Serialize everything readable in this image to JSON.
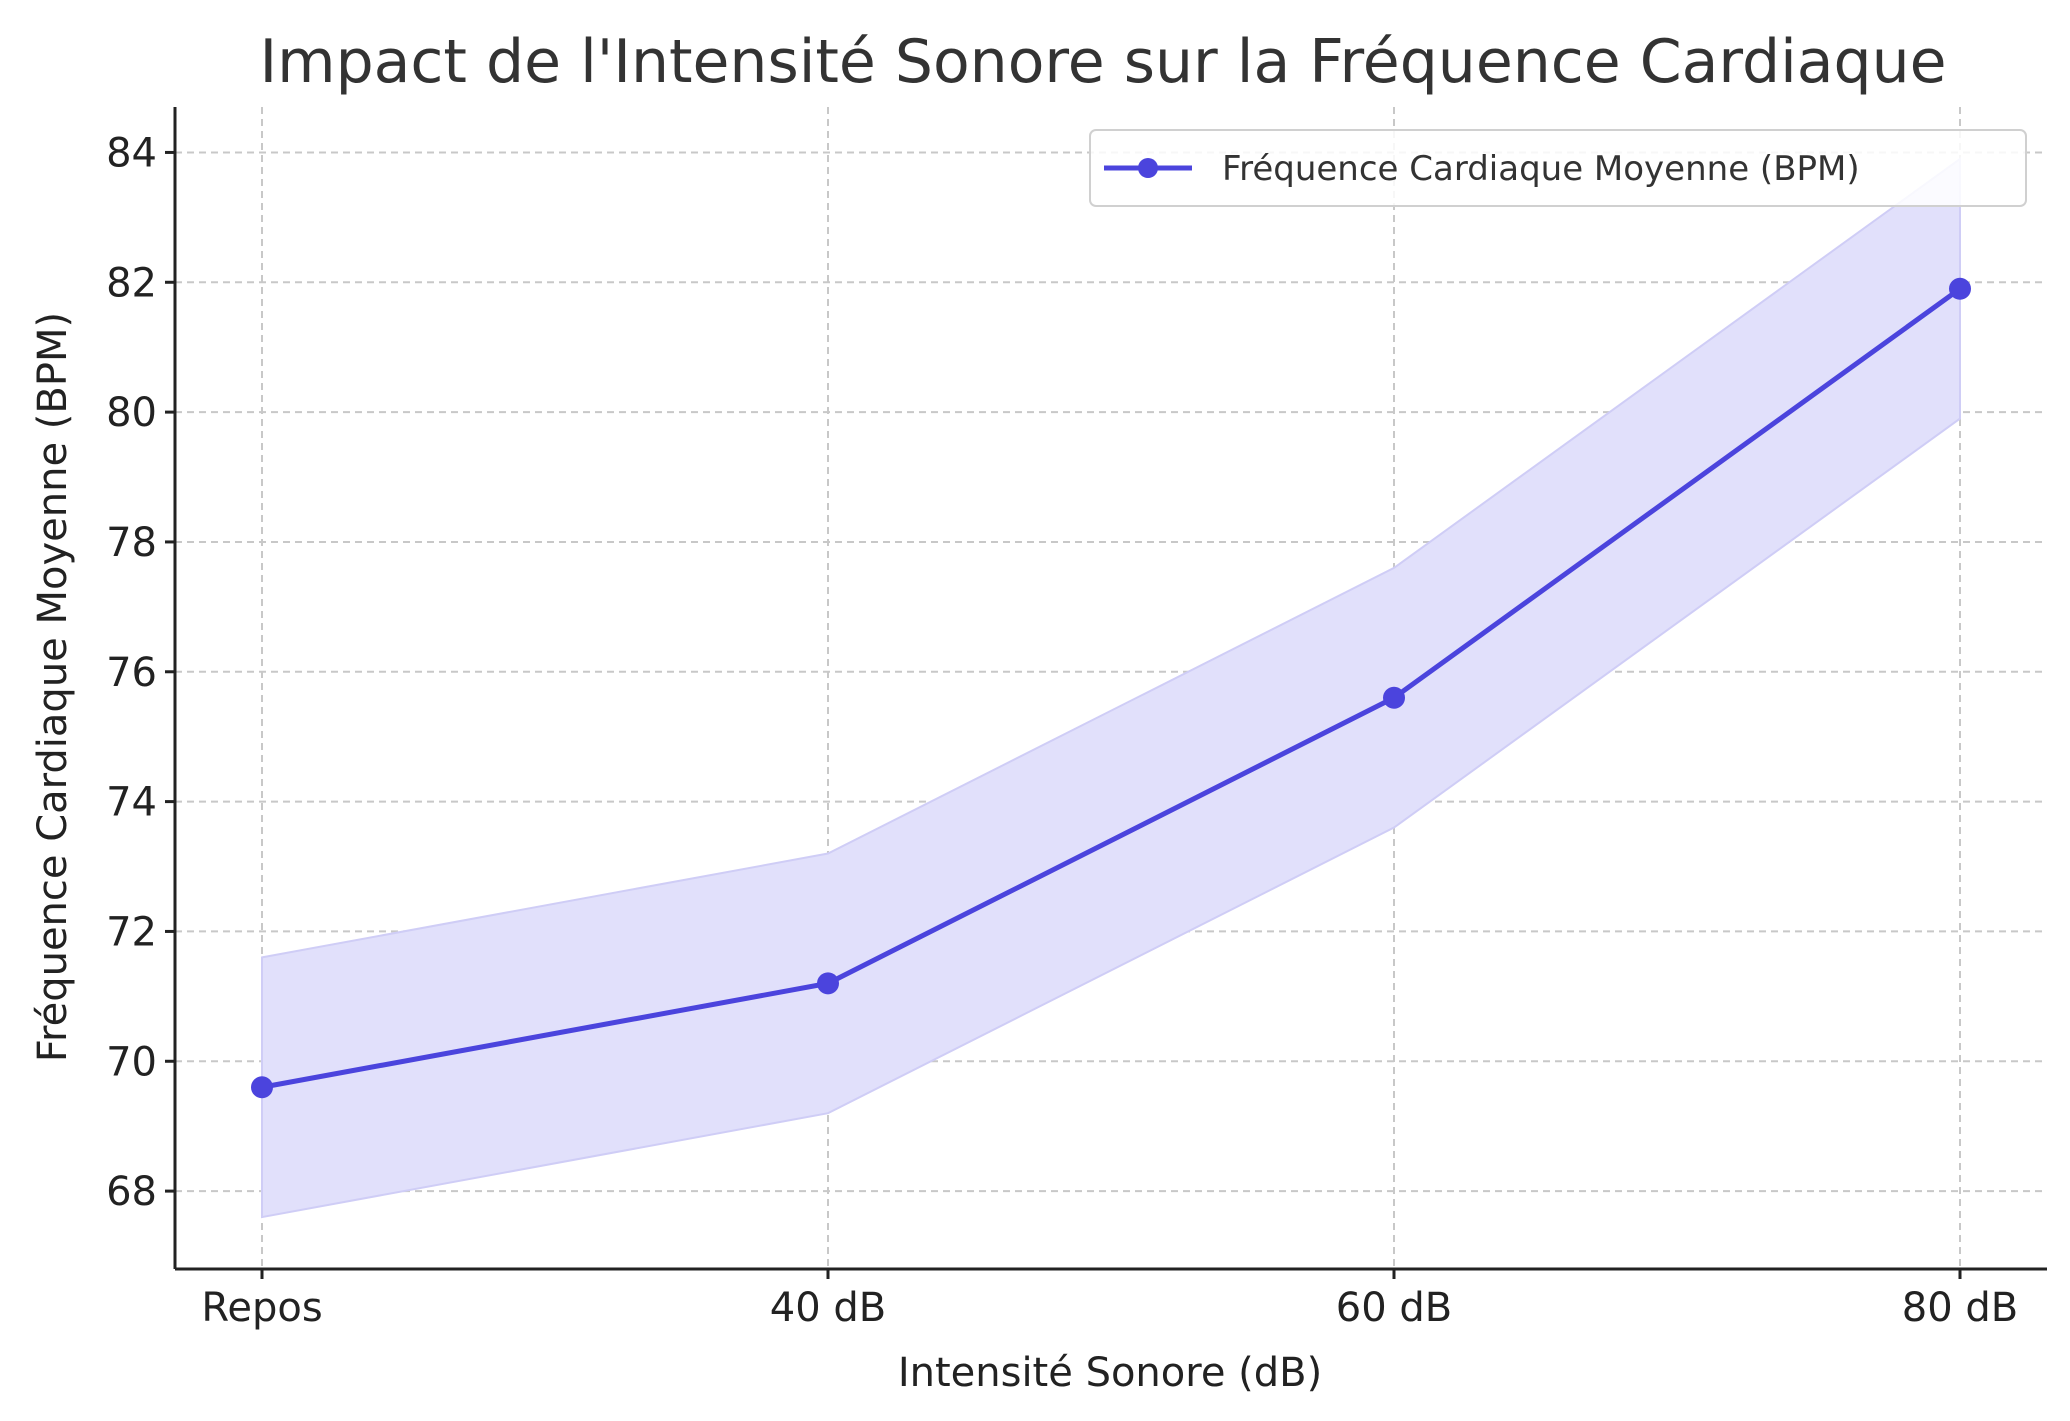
{
  "chart_data": {
    "type": "line",
    "title": "Impact de l'Intensité Sonore sur la Fréquence Cardiaque",
    "xlabel": "Intensité Sonore (dB)",
    "ylabel": "Fréquence Cardiaque Moyenne (BPM)",
    "categories": [
      "Repos",
      "40 dB",
      "60 dB",
      "80 dB"
    ],
    "series": [
      {
        "name": "Fréquence Cardiaque Moyenne (BPM)",
        "values": [
          69.6,
          71.2,
          75.6,
          81.9
        ],
        "band_lower": [
          67.6,
          69.2,
          73.6,
          79.9
        ],
        "band_upper": [
          71.6,
          73.2,
          77.6,
          83.9
        ],
        "color": "#4b44dd",
        "band_color": "#e1e0fb"
      }
    ],
    "ylim": [
      66.8,
      84.7
    ],
    "yticks": [
      68,
      70,
      72,
      74,
      76,
      78,
      80,
      82,
      84
    ],
    "grid": true,
    "legend_position": "top-right"
  }
}
